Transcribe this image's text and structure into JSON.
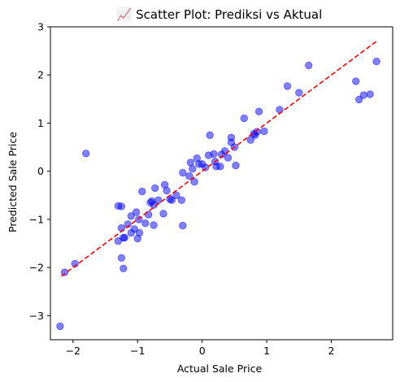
{
  "chart_data": {
    "type": "scatter",
    "title": "📈 Scatter Plot: Prediksi vs Aktual",
    "title_icon": "chart-increasing-emoji",
    "xlabel": "Actual Sale Price",
    "ylabel": "Predicted Sale Price",
    "xlim": [
      -2.35,
      2.95
    ],
    "ylim": [
      -3.5,
      3.0
    ],
    "xticks": [
      -2,
      -1,
      0,
      1,
      2
    ],
    "yticks": [
      -3,
      -2,
      -1,
      0,
      1,
      2,
      3
    ],
    "grid": false,
    "point_color": "#0000ff",
    "point_opacity": 0.5,
    "reference_line": {
      "x": [
        -2.18,
        2.7
      ],
      "y": [
        -2.18,
        2.7
      ],
      "color": "#ff0000",
      "style": "dashed"
    },
    "points": [
      [
        -2.2,
        -3.22
      ],
      [
        -2.13,
        -2.1
      ],
      [
        -1.97,
        -1.92
      ],
      [
        -1.8,
        0.37
      ],
      [
        -1.3,
        -1.45
      ],
      [
        -1.25,
        -1.8
      ],
      [
        -1.25,
        -1.18
      ],
      [
        -1.3,
        -0.72
      ],
      [
        -1.25,
        -0.73
      ],
      [
        -1.22,
        -1.38
      ],
      [
        -1.2,
        -1.38
      ],
      [
        -1.22,
        -2.02
      ],
      [
        -1.15,
        -1.1
      ],
      [
        -1.1,
        -0.93
      ],
      [
        -1.1,
        -1.28
      ],
      [
        -1.05,
        -1.2
      ],
      [
        -1.02,
        -0.85
      ],
      [
        -1.0,
        -1.4
      ],
      [
        -0.98,
        -1.0
      ],
      [
        -0.97,
        -1.28
      ],
      [
        -0.93,
        -0.42
      ],
      [
        -0.88,
        -1.08
      ],
      [
        -0.83,
        -0.9
      ],
      [
        -0.8,
        -0.65
      ],
      [
        -0.78,
        -0.62
      ],
      [
        -0.75,
        -0.7
      ],
      [
        -0.75,
        -1.12
      ],
      [
        -0.73,
        -0.35
      ],
      [
        -0.68,
        -0.6
      ],
      [
        -0.6,
        -0.88
      ],
      [
        -0.58,
        -0.28
      ],
      [
        -0.55,
        -0.4
      ],
      [
        -0.5,
        -0.58
      ],
      [
        -0.47,
        -0.6
      ],
      [
        -0.4,
        -0.5
      ],
      [
        -0.32,
        -0.6
      ],
      [
        -0.3,
        -1.13
      ],
      [
        -0.3,
        -0.03
      ],
      [
        -0.2,
        -0.1
      ],
      [
        -0.18,
        0.18
      ],
      [
        -0.15,
        0.05
      ],
      [
        -0.12,
        -0.22
      ],
      [
        -0.08,
        0.27
      ],
      [
        -0.05,
        0.15
      ],
      [
        0.0,
        0.15
      ],
      [
        0.05,
        0.08
      ],
      [
        0.1,
        0.33
      ],
      [
        0.12,
        0.75
      ],
      [
        0.18,
        0.36
      ],
      [
        0.2,
        0.2
      ],
      [
        0.22,
        0.1
      ],
      [
        0.28,
        0.1
      ],
      [
        0.3,
        0.35
      ],
      [
        0.35,
        0.42
      ],
      [
        0.4,
        0.28
      ],
      [
        0.45,
        0.7
      ],
      [
        0.45,
        0.6
      ],
      [
        0.5,
        0.5
      ],
      [
        0.52,
        0.12
      ],
      [
        0.65,
        1.1
      ],
      [
        0.75,
        0.65
      ],
      [
        0.8,
        0.78
      ],
      [
        0.82,
        0.75
      ],
      [
        0.85,
        0.82
      ],
      [
        0.88,
        1.24
      ],
      [
        0.96,
        0.83
      ],
      [
        1.2,
        1.28
      ],
      [
        1.32,
        1.77
      ],
      [
        1.5,
        1.63
      ],
      [
        1.65,
        2.2
      ],
      [
        2.38,
        1.87
      ],
      [
        2.43,
        1.49
      ],
      [
        2.5,
        1.58
      ],
      [
        2.6,
        1.6
      ],
      [
        2.7,
        2.28
      ]
    ]
  }
}
